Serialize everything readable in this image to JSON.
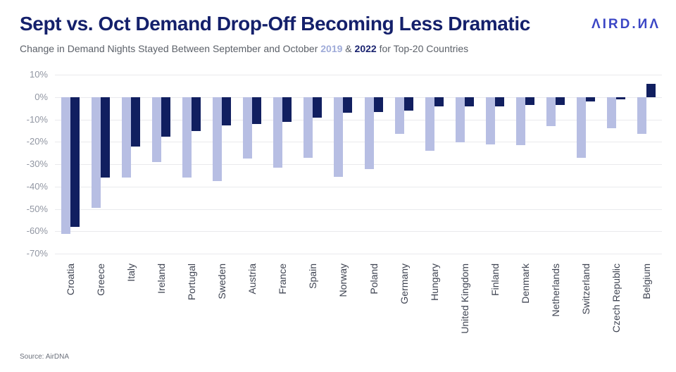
{
  "header": {
    "title": "Sept vs. Oct Demand Drop-Off Becoming Less Dramatic",
    "subtitle_prefix": "Change in Demand Nights Stayed Between September and October ",
    "subtitle_year1": "2019",
    "subtitle_amp": " & ",
    "subtitle_year2": "2022",
    "subtitle_suffix": " for Top-20 Countries",
    "logo_display": "ΛIRD.ИΛ",
    "logo_name": "AirDNA"
  },
  "footer": {
    "source": "Source: AirDNA"
  },
  "colors": {
    "title": "#14206b",
    "logo": "#3b46c5",
    "bar_2019": "#b7bee3",
    "bar_2022": "#111f60",
    "gridline": "#e9eaed"
  },
  "chart_data": {
    "type": "bar",
    "title": "Sept vs. Oct Demand Drop-Off Becoming Less Dramatic",
    "subtitle": "Change in Demand Nights Stayed Between September and October 2019 & 2022 for Top-20 Countries",
    "xlabel": "",
    "ylabel": "",
    "ylim": [
      -70,
      10
    ],
    "grid": true,
    "legend_position": "none (series colors referenced by year colors in subtitle)",
    "categories": [
      "Croatia",
      "Greece",
      "Italy",
      "Ireland",
      "Portugal",
      "Sweden",
      "Austria",
      "France",
      "Spain",
      "Norway",
      "Poland",
      "Germany",
      "Hungary",
      "United Kingdom",
      "Finland",
      "Denmark",
      "Netherlands",
      "Switzerland",
      "Czech Republic",
      "Belgium"
    ],
    "series": [
      {
        "name": "2019",
        "color": "#b7bee3",
        "values": [
          -61,
          -49.5,
          -36,
          -29,
          -36,
          -37.5,
          -27.5,
          -31.5,
          -27,
          -35.5,
          -32,
          -16.5,
          -24,
          -20,
          -21,
          -21.5,
          -13,
          -27,
          -14,
          -16.5
        ]
      },
      {
        "name": "2022",
        "color": "#111f60",
        "values": [
          -58,
          -36,
          -22,
          -17.5,
          -15,
          -12.5,
          -12,
          -11,
          -9,
          -7,
          -6.5,
          -6,
          -4,
          -4,
          -4,
          -3.5,
          -3.5,
          -2,
          -1,
          6
        ]
      }
    ],
    "y_ticks": [
      {
        "label": "10%",
        "value": 10
      },
      {
        "label": "0%",
        "value": 0
      },
      {
        "label": "-10%",
        "value": -10
      },
      {
        "label": "-20%",
        "value": -20
      },
      {
        "label": "-30%",
        "value": -30
      },
      {
        "label": "-40%",
        "value": -40
      },
      {
        "label": "-50%",
        "value": -50
      },
      {
        "label": "-60%",
        "value": -60
      },
      {
        "label": "-70%",
        "value": -70
      }
    ]
  }
}
